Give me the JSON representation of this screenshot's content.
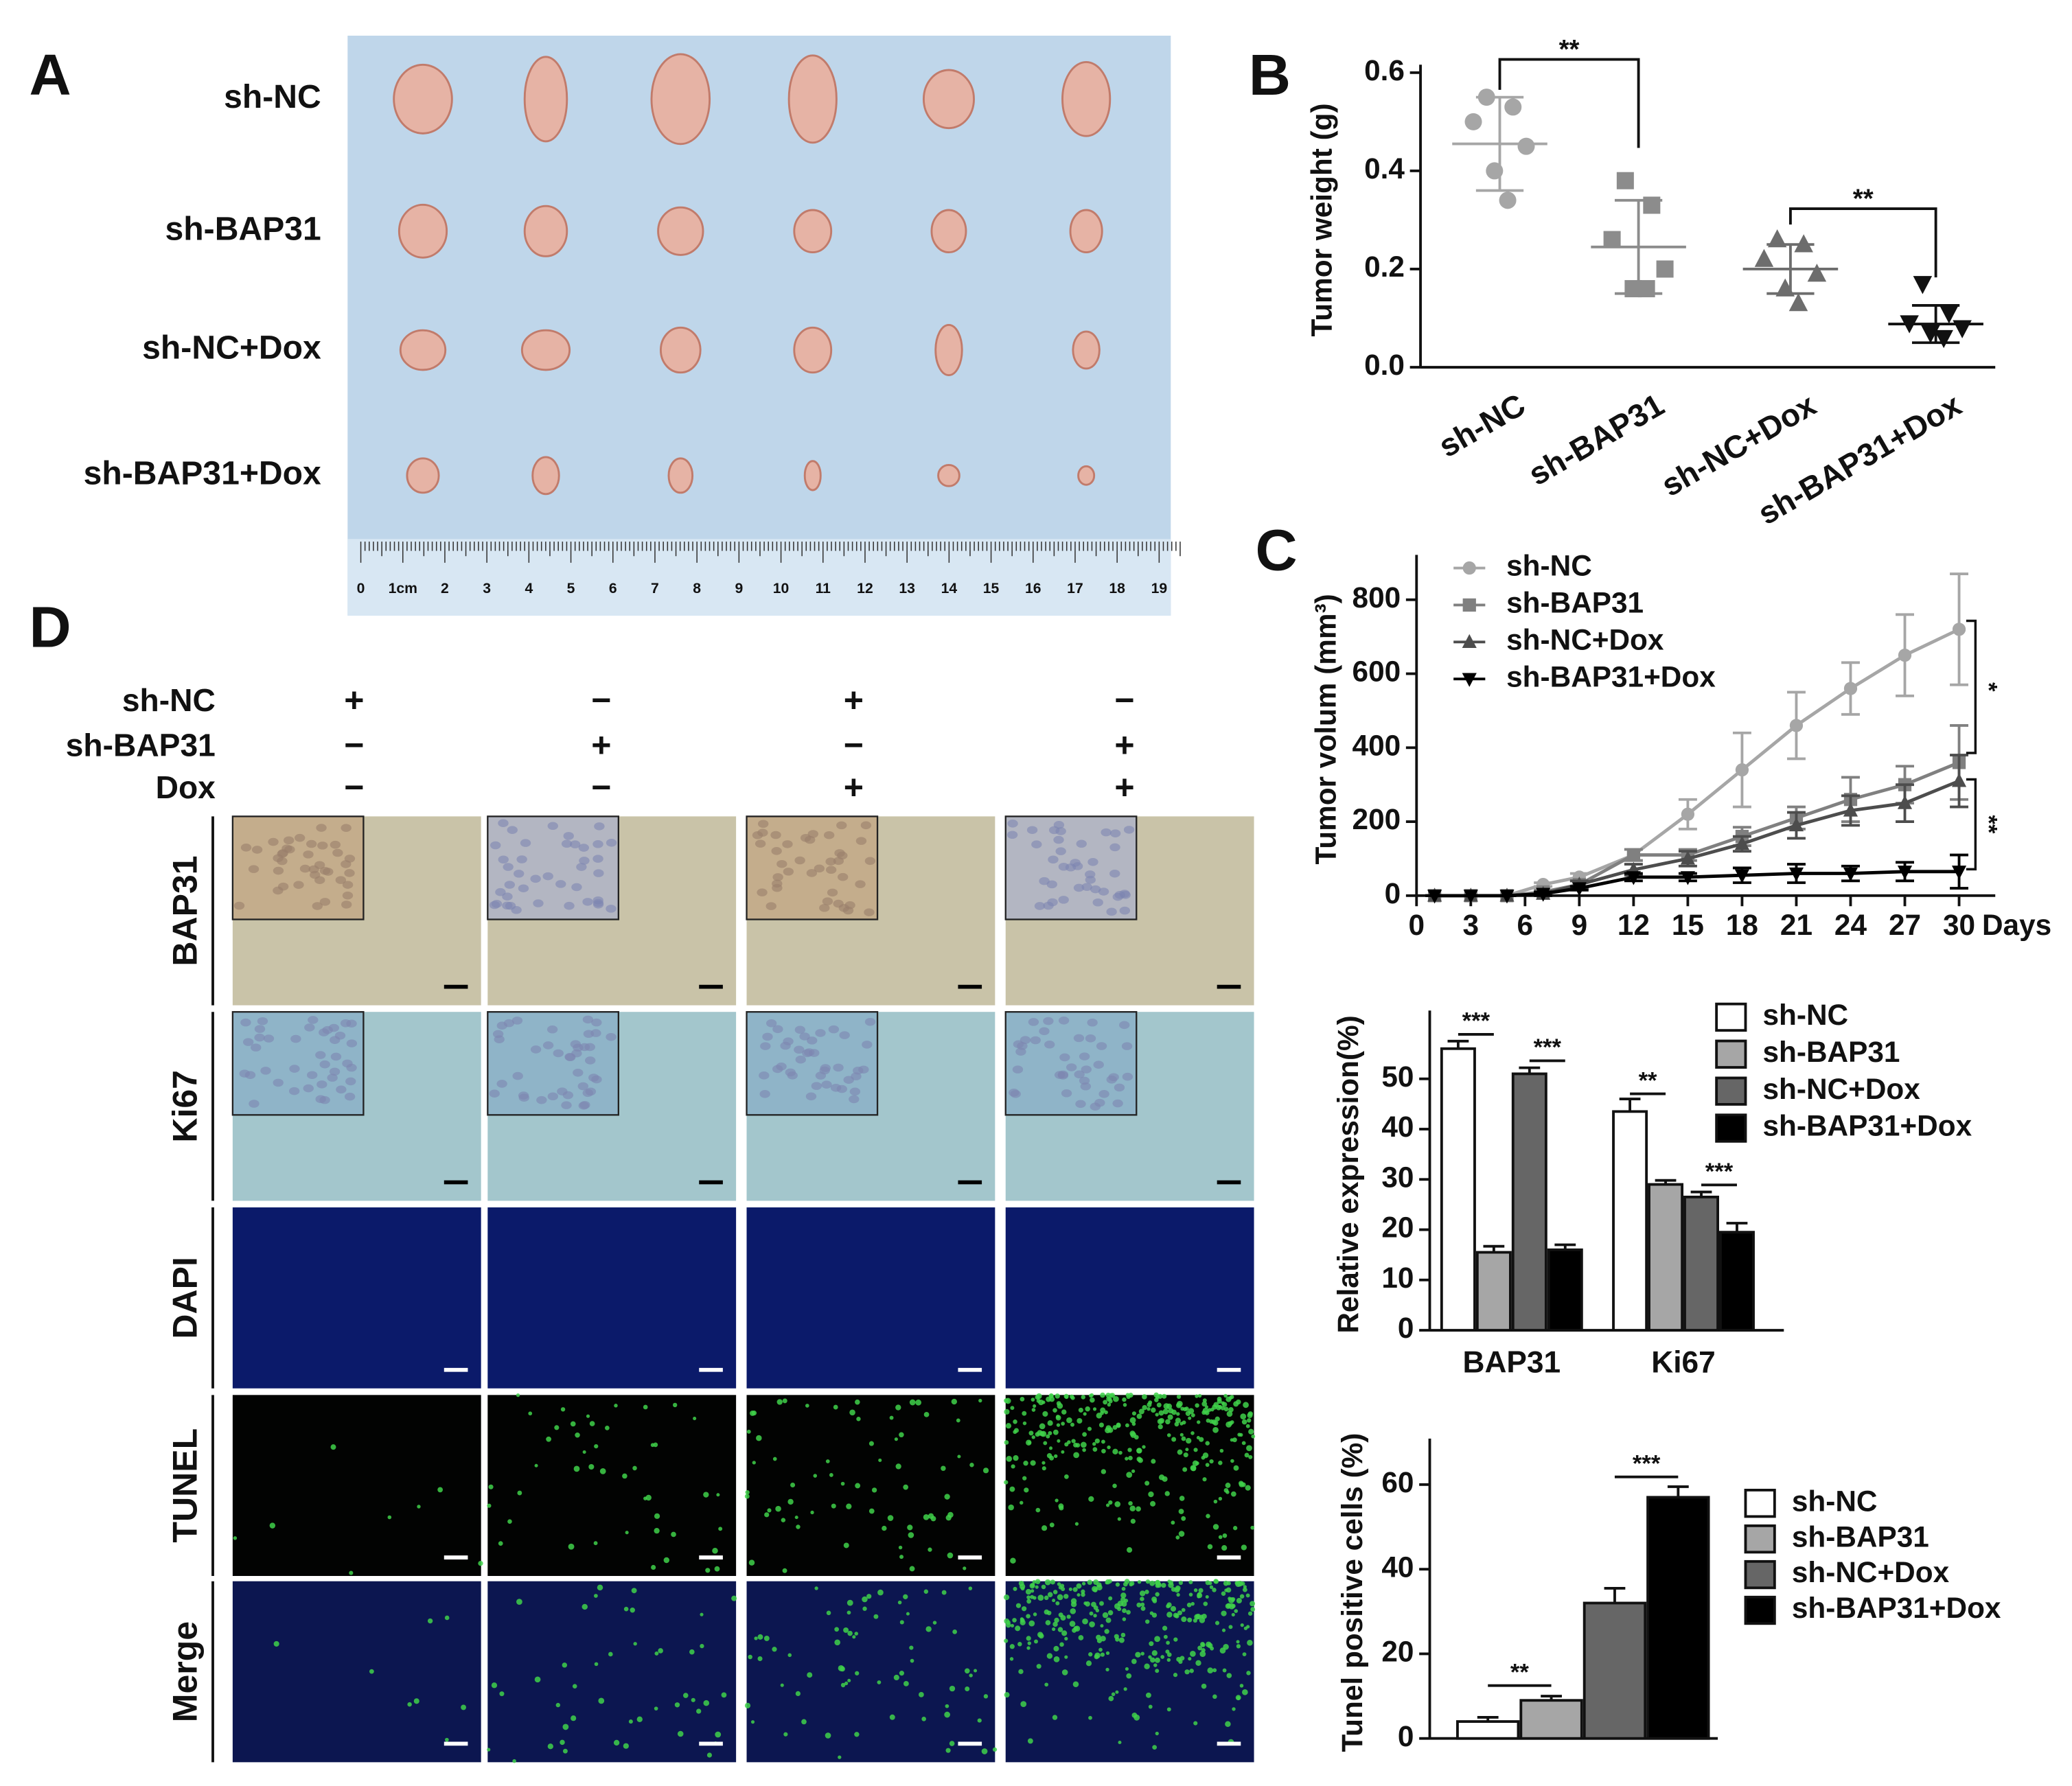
{
  "photo_panels": {
    "panel_a": {
      "label": "A",
      "rows": [
        "sh-NC",
        "sh-BAP31",
        "sh-NC+Dox",
        "sh-BAP31+Dox"
      ],
      "ruler": [
        "0",
        "1cm",
        "2",
        "3",
        "4",
        "5",
        "6",
        "7",
        "8",
        "9",
        "10",
        "11",
        "12",
        "13",
        "14",
        "15",
        "16",
        "17",
        "18",
        "19"
      ]
    },
    "panel_d": {
      "label": "D",
      "conditions": [
        {
          "name": "sh-NC",
          "signs": [
            "+",
            "−",
            "+",
            "−"
          ]
        },
        {
          "name": "sh-BAP31",
          "signs": [
            "−",
            "+",
            "−",
            "+"
          ]
        },
        {
          "name": "Dox",
          "signs": [
            "−",
            "−",
            "+",
            "+"
          ]
        }
      ],
      "stains": [
        "BAP31",
        "Ki67",
        "DAPI",
        "TUNEL",
        "Merge"
      ]
    }
  },
  "chart_data": [
    {
      "type": "dot",
      "panel_label": "B",
      "ylabel": "Tumor weight (g)",
      "categories": [
        "sh-NC",
        "sh-BAP31",
        "sh-NC+Dox",
        "sh-BAP31+Dox"
      ],
      "points": [
        [
          0.55,
          0.53,
          0.5,
          0.45,
          0.4,
          0.34
        ],
        [
          0.38,
          0.33,
          0.26,
          0.2,
          0.16,
          0.16
        ],
        [
          0.26,
          0.25,
          0.22,
          0.19,
          0.16,
          0.13
        ],
        [
          0.17,
          0.11,
          0.09,
          0.08,
          0.07,
          0.06
        ]
      ],
      "means": [
        0.455,
        0.245,
        0.2,
        0.088
      ],
      "sds": [
        0.095,
        0.095,
        0.05,
        0.038
      ],
      "colors": [
        "#a6a6a6",
        "#8c8c8c",
        "#6d6d6d",
        "#111111"
      ],
      "markers": [
        "circle",
        "square",
        "triangle-up",
        "triangle-down"
      ],
      "ylim": [
        0,
        0.6
      ],
      "yticks": [
        {
          "value": 0,
          "label": "0.0"
        },
        0.2,
        0.4,
        0.6
      ],
      "annotations": [
        "**",
        "**"
      ]
    },
    {
      "type": "line",
      "panel_label": "C",
      "ylabel": "Tumor volum (mm³)",
      "xlabel": "Days",
      "x": [
        1,
        3,
        5,
        7,
        9,
        12,
        15,
        18,
        21,
        24,
        27,
        30
      ],
      "xlim": [
        0,
        32
      ],
      "xticks": [
        0,
        3,
        6,
        9,
        12,
        15,
        18,
        21,
        24,
        27,
        30
      ],
      "ylim": [
        0,
        900
      ],
      "yticks": [
        0,
        200,
        400,
        600,
        800
      ],
      "series": [
        {
          "name": "sh-NC",
          "color": "#a6a6a6",
          "marker": "circle",
          "values": [
            0,
            0,
            0,
            30,
            50,
            110,
            220,
            340,
            460,
            560,
            650,
            720
          ],
          "errors": [
            0,
            0,
            0,
            5,
            10,
            15,
            40,
            100,
            90,
            70,
            110,
            150
          ]
        },
        {
          "name": "sh-BAP31",
          "color": "#808080",
          "marker": "square",
          "values": [
            0,
            0,
            0,
            10,
            30,
            110,
            110,
            160,
            210,
            260,
            300,
            360
          ],
          "errors": [
            0,
            0,
            0,
            5,
            10,
            15,
            15,
            25,
            30,
            60,
            50,
            100
          ]
        },
        {
          "name": "sh-NC+Dox",
          "color": "#4d4d4d",
          "marker": "triangle-up",
          "values": [
            0,
            0,
            0,
            5,
            30,
            70,
            100,
            140,
            190,
            230,
            250,
            310
          ],
          "errors": [
            0,
            0,
            0,
            5,
            10,
            15,
            20,
            20,
            35,
            40,
            50,
            70
          ]
        },
        {
          "name": "sh-BAP31+Dox",
          "color": "#000000",
          "marker": "triangle-down",
          "values": [
            0,
            0,
            0,
            5,
            20,
            50,
            50,
            55,
            60,
            60,
            65,
            65
          ],
          "errors": [
            0,
            0,
            0,
            5,
            5,
            10,
            10,
            20,
            25,
            20,
            25,
            45
          ]
        }
      ],
      "annotations": [
        "*",
        "**"
      ]
    },
    {
      "type": "bar",
      "ylabel": "Relative expression(%)",
      "categories": [
        "BAP31",
        "Ki67"
      ],
      "ylim": [
        0,
        62
      ],
      "yticks": [
        0,
        10,
        20,
        30,
        40,
        50
      ],
      "series": [
        {
          "name": "sh-NC",
          "color": "#ffffff",
          "values": [
            56,
            43.5
          ],
          "errors": [
            1.5,
            2.5
          ]
        },
        {
          "name": "sh-BAP31",
          "color": "#a6a6a6",
          "values": [
            15.5,
            29
          ],
          "errors": [
            1.2,
            0.8
          ]
        },
        {
          "name": "sh-NC+Dox",
          "color": "#666666",
          "values": [
            51,
            26.5
          ],
          "errors": [
            1.2,
            1
          ]
        },
        {
          "name": "sh-BAP31+Dox",
          "color": "#000000",
          "values": [
            16,
            19.5
          ],
          "errors": [
            1,
            1.8
          ]
        }
      ],
      "annotations": [
        "***",
        "***",
        "**",
        "***"
      ]
    },
    {
      "type": "bar",
      "ylabel": "Tunel positive cells (%)",
      "categories": [
        null
      ],
      "ylim": [
        0,
        69
      ],
      "yticks": [
        0,
        20,
        40,
        60
      ],
      "series": [
        {
          "name": "sh-NC",
          "color": "#ffffff",
          "values": [
            4
          ],
          "errors": [
            1
          ]
        },
        {
          "name": "sh-BAP31",
          "color": "#a6a6a6",
          "values": [
            9
          ],
          "errors": [
            1
          ]
        },
        {
          "name": "sh-NC+Dox",
          "color": "#666666",
          "values": [
            32
          ],
          "errors": [
            3.5
          ]
        },
        {
          "name": "sh-BAP31+Dox",
          "color": "#000000",
          "values": [
            57
          ],
          "errors": [
            2.5
          ]
        }
      ],
      "annotations": [
        "**",
        "***"
      ]
    }
  ]
}
